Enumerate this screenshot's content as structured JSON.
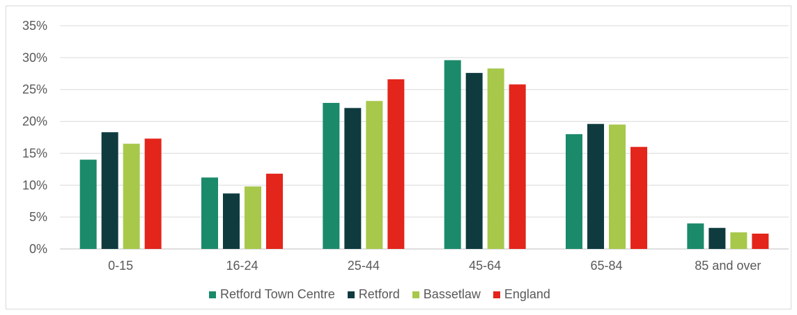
{
  "chart_data": {
    "type": "bar",
    "title": "",
    "xlabel": "",
    "ylabel": "",
    "categories": [
      "0-15",
      "16-24",
      "25-44",
      "45-64",
      "65-84",
      "85 and over"
    ],
    "series": [
      {
        "name": "Retford Town Centre",
        "color": "#1a8a6a",
        "values": [
          14.0,
          11.2,
          22.9,
          29.6,
          18.0,
          4.0
        ]
      },
      {
        "name": "Retford",
        "color": "#0f3b3f",
        "values": [
          18.3,
          8.7,
          22.1,
          27.6,
          19.6,
          3.3
        ]
      },
      {
        "name": "Bassetlaw",
        "color": "#a7c84b",
        "values": [
          16.5,
          9.8,
          23.2,
          28.3,
          19.5,
          2.6
        ]
      },
      {
        "name": "England",
        "color": "#e3251b",
        "values": [
          17.3,
          11.8,
          26.6,
          25.8,
          16.0,
          2.4
        ]
      }
    ],
    "ylim": [
      0,
      35
    ],
    "yticks": [
      "0%",
      "5%",
      "10%",
      "15%",
      "20%",
      "25%",
      "30%",
      "35%"
    ],
    "grid": true,
    "legend_position": "bottom"
  }
}
